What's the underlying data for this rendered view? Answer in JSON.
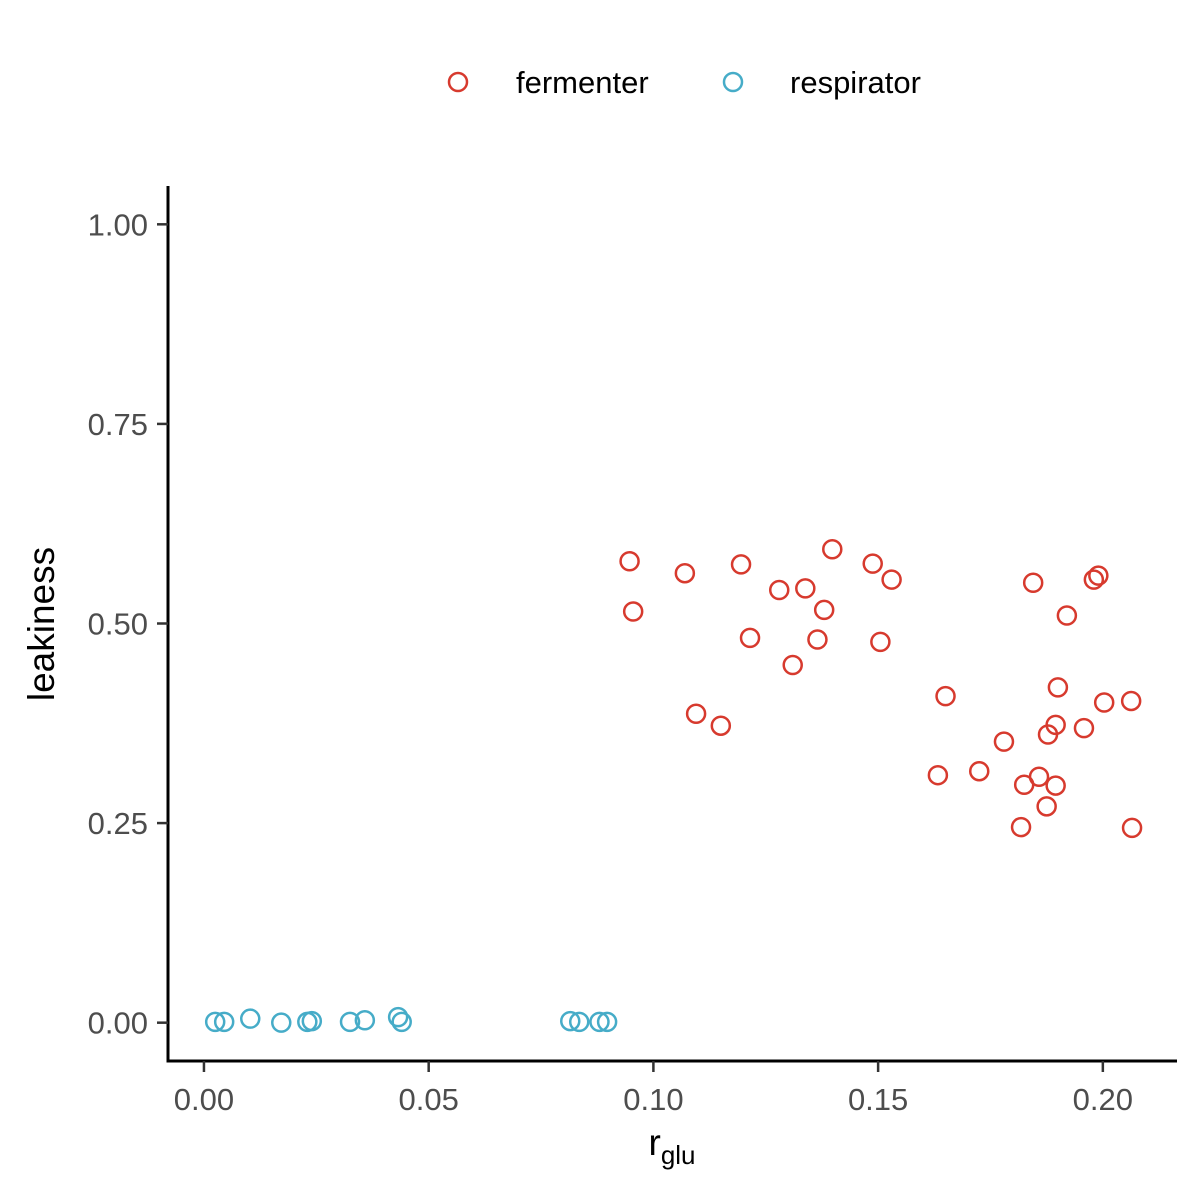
{
  "chart_data": {
    "type": "scatter",
    "title": "",
    "xlabel": {
      "main": "r",
      "sub": "glu"
    },
    "ylabel": "leakiness",
    "xlim": [
      -0.008,
      0.2165
    ],
    "ylim": [
      -0.048,
      1.048
    ],
    "xticks": [
      0.0,
      0.05,
      0.1,
      0.15,
      0.2
    ],
    "xtick_labels": [
      "0.00",
      "0.05",
      "0.10",
      "0.15",
      "0.20"
    ],
    "yticks": [
      0.0,
      0.25,
      0.5,
      0.75,
      1.0
    ],
    "ytick_labels": [
      "0.00",
      "0.25",
      "0.50",
      "0.75",
      "1.00"
    ],
    "grid": false,
    "legend_position": "top",
    "series": [
      {
        "name": "fermenter",
        "color": "#d73a2e",
        "marker": "open-circle",
        "points": [
          [
            0.0947,
            0.578
          ],
          [
            0.0955,
            0.515
          ],
          [
            0.107,
            0.563
          ],
          [
            0.1095,
            0.387
          ],
          [
            0.115,
            0.372
          ],
          [
            0.1195,
            0.574
          ],
          [
            0.1215,
            0.482
          ],
          [
            0.128,
            0.542
          ],
          [
            0.131,
            0.448
          ],
          [
            0.1338,
            0.544
          ],
          [
            0.1365,
            0.48
          ],
          [
            0.138,
            0.517
          ],
          [
            0.1398,
            0.593
          ],
          [
            0.1488,
            0.575
          ],
          [
            0.1505,
            0.477
          ],
          [
            0.153,
            0.555
          ],
          [
            0.1633,
            0.31
          ],
          [
            0.165,
            0.409
          ],
          [
            0.1725,
            0.315
          ],
          [
            0.178,
            0.352
          ],
          [
            0.1818,
            0.245
          ],
          [
            0.1825,
            0.298
          ],
          [
            0.1845,
            0.551
          ],
          [
            0.1858,
            0.308
          ],
          [
            0.1875,
            0.271
          ],
          [
            0.1878,
            0.361
          ],
          [
            0.1895,
            0.373
          ],
          [
            0.1895,
            0.297
          ],
          [
            0.19,
            0.42
          ],
          [
            0.192,
            0.51
          ],
          [
            0.1958,
            0.369
          ],
          [
            0.198,
            0.555
          ],
          [
            0.199,
            0.56
          ],
          [
            0.2003,
            0.401
          ],
          [
            0.2063,
            0.403
          ],
          [
            0.2065,
            0.244
          ]
        ]
      },
      {
        "name": "respirator",
        "color": "#46acc8",
        "marker": "open-circle",
        "points": [
          [
            0.0025,
            0.001
          ],
          [
            0.0045,
            0.001
          ],
          [
            0.0103,
            0.005
          ],
          [
            0.0172,
            0.0
          ],
          [
            0.023,
            0.001
          ],
          [
            0.024,
            0.002
          ],
          [
            0.0325,
            0.001
          ],
          [
            0.0358,
            0.003
          ],
          [
            0.0432,
            0.007
          ],
          [
            0.044,
            0.001
          ],
          [
            0.0815,
            0.002
          ],
          [
            0.0835,
            0.001
          ],
          [
            0.088,
            0.001
          ],
          [
            0.0897,
            0.001
          ]
        ]
      }
    ]
  }
}
